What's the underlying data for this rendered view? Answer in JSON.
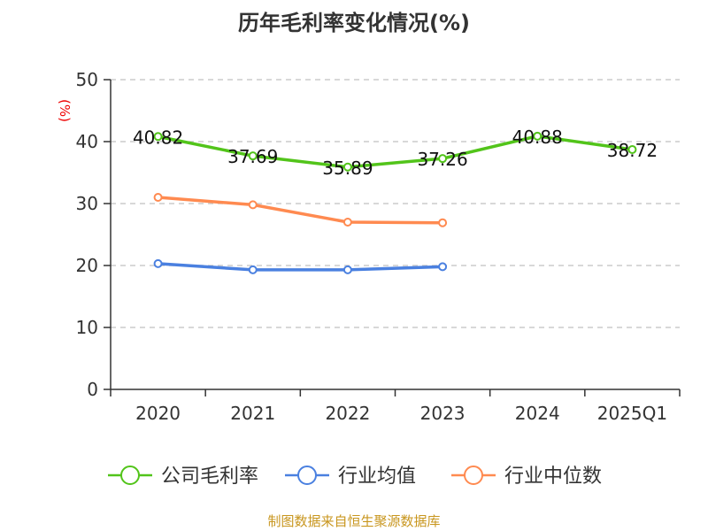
{
  "chart_data": {
    "type": "line",
    "title": "历年毛利率变化情况(%)",
    "ylabel": "(%)",
    "xlabel": "",
    "ylim": [
      0,
      50
    ],
    "yticks": [
      0,
      10,
      20,
      30,
      40,
      50
    ],
    "grid": true,
    "legend_position": "bottom",
    "categories": [
      "2020",
      "2021",
      "2022",
      "2023",
      "2024",
      "2025Q1"
    ],
    "series": [
      {
        "name": "公司毛利率",
        "color": "#52c41a",
        "values": [
          40.82,
          37.69,
          35.89,
          37.26,
          40.88,
          38.72
        ],
        "labels": [
          "40.82",
          "37.69",
          "35.89",
          "37.26",
          "40.88",
          "38.72"
        ]
      },
      {
        "name": "行业均值",
        "color": "#4a80e0",
        "values": [
          20.3,
          19.3,
          19.3,
          19.8,
          null,
          null
        ]
      },
      {
        "name": "行业中位数",
        "color": "#ff8a50",
        "values": [
          31.0,
          29.8,
          27.0,
          26.9,
          null,
          null
        ]
      }
    ]
  },
  "source": "制图数据来自恒生聚源数据库"
}
